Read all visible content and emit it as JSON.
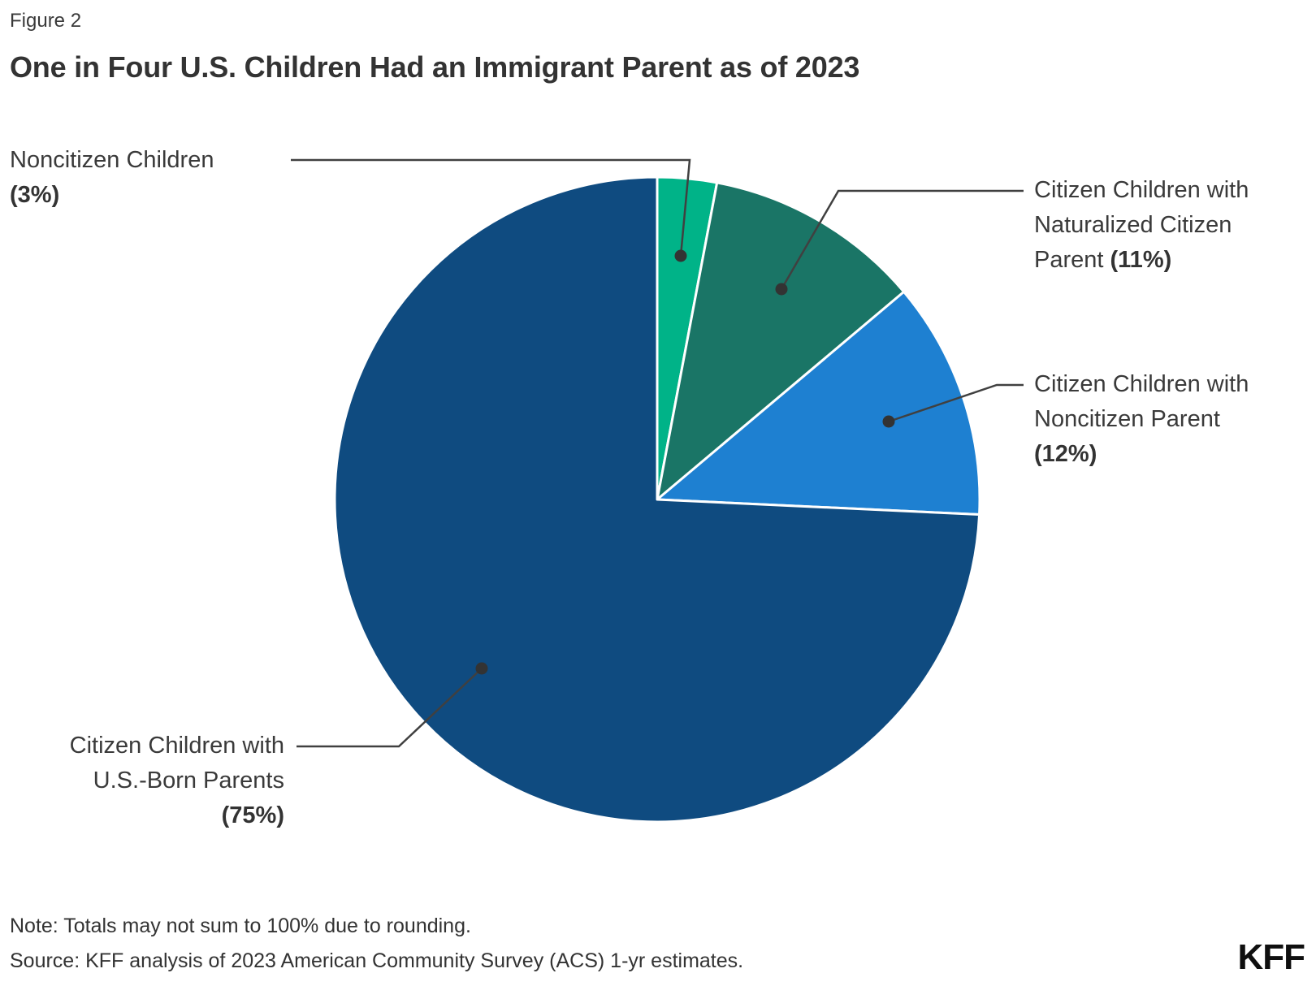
{
  "figure_label": "Figure 2",
  "title": "One in Four U.S. Children Had an Immigrant Parent as of 2023",
  "note": "Note: Totals may not sum to 100% due to rounding.",
  "source": "Source: KFF analysis of 2023 American Community Survey (ACS) 1-yr estimates.",
  "logo_text": "KFF",
  "colors": {
    "green": "#00B388",
    "teal": "#1A7566",
    "blue": "#1E80D1",
    "navy": "#0F4B80",
    "leader_line": "#404040",
    "text": "#333333"
  },
  "chart_data": {
    "type": "pie",
    "title": "One in Four U.S. Children Had an Immigrant Parent as of 2023",
    "start_angle_deg": 0,
    "direction": "clockwise",
    "slices": [
      {
        "label": "Noncitizen Children",
        "pct_label": "(3%)",
        "value": 3,
        "color": "#00B388"
      },
      {
        "label": "Citizen Children with Naturalized Citizen Parent",
        "pct_label": "(11%)",
        "value": 11,
        "color": "#1A7566"
      },
      {
        "label": "Citizen Children with Noncitizen Parent",
        "pct_label": "(12%)",
        "value": 12,
        "color": "#1E80D1"
      },
      {
        "label": "Citizen Children with U.S.-Born Parents",
        "pct_label": "(75%)",
        "value": 75,
        "color": "#0F4B80"
      }
    ]
  },
  "labels": {
    "noncitizen": {
      "line1": "Noncitizen Children",
      "pct": "(3%)"
    },
    "naturalized": {
      "line1": "Citizen Children with",
      "line2": "Naturalized Citizen",
      "line3_prefix": "Parent ",
      "pct": "(11%)"
    },
    "noncitizen_parent": {
      "line1": "Citizen Children with",
      "line2": "Noncitizen Parent",
      "pct": "(12%)"
    },
    "usborn": {
      "line1": "Citizen Children with",
      "line2": "U.S.-Born Parents",
      "pct": "(75%)"
    }
  }
}
